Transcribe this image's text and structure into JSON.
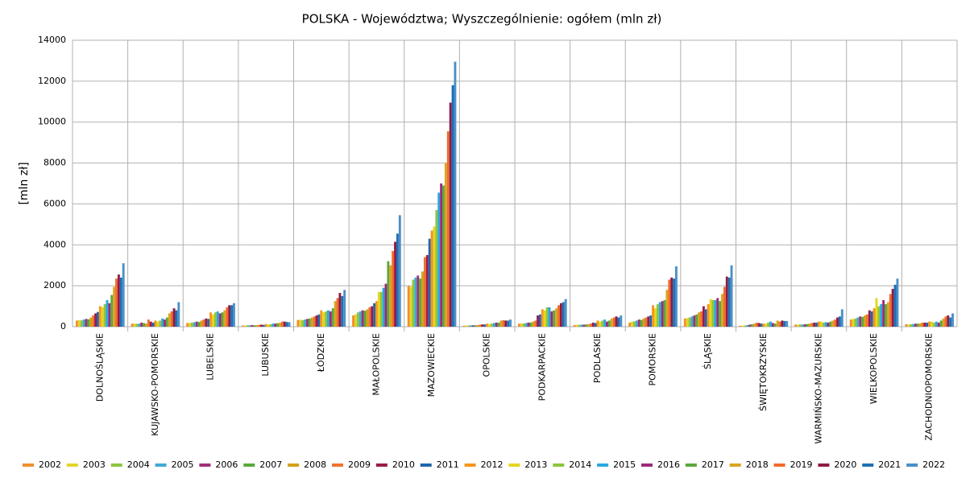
{
  "chart_data": {
    "type": "bar",
    "title": "POLSKA - Województwa; Wyszczególnienie: ogółem (mln zł)",
    "y_label": "[mln zł]",
    "categories": [
      "DOLNOŚLĄSKIE",
      "KUJAWSKO-POMORSKIE",
      "LUBELSKIE",
      "LUBUSKIE",
      "ŁÓDZKIE",
      "MAŁOPOLSKIE",
      "MAZOWIECKIE",
      "OPOLSKIE",
      "PODKARPACKIE",
      "PODLASKIE",
      "POMORSKIE",
      "ŚLĄSKIE",
      "ŚWIĘTOKRZYSKIE",
      "WARMIŃSKO-MAZURSKIE",
      "WIELKOPOLSKIE",
      "ZACHODNIOPOMORSKIE"
    ],
    "ylim": [
      0,
      14000
    ],
    "yticks": [
      0,
      2000,
      4000,
      6000,
      8000,
      10000,
      12000,
      14000
    ],
    "grid": true,
    "legend": "bottom",
    "series": [
      {
        "name": "2002",
        "color": "#f28e2b",
        "values": [
          300,
          150,
          180,
          60,
          330,
          550,
          2000,
          50,
          150,
          80,
          200,
          400,
          50,
          100,
          350,
          120
        ]
      },
      {
        "name": "2003",
        "color": "#e2d52a",
        "values": [
          320,
          150,
          190,
          60,
          340,
          600,
          1950,
          60,
          160,
          90,
          250,
          420,
          50,
          100,
          380,
          110
        ]
      },
      {
        "name": "2004",
        "color": "#8dc63f",
        "values": [
          310,
          140,
          200,
          70,
          320,
          700,
          2300,
          60,
          160,
          90,
          260,
          450,
          60,
          110,
          400,
          120
        ]
      },
      {
        "name": "2005",
        "color": "#3fa9d4",
        "values": [
          350,
          150,
          220,
          70,
          350,
          750,
          2400,
          70,
          180,
          100,
          300,
          500,
          80,
          110,
          450,
          130
        ]
      },
      {
        "name": "2006",
        "color": "#a0307a",
        "values": [
          380,
          200,
          250,
          80,
          380,
          800,
          2500,
          70,
          200,
          100,
          350,
          550,
          100,
          120,
          500,
          150
        ]
      },
      {
        "name": "2007",
        "color": "#5aa83a",
        "values": [
          360,
          180,
          230,
          70,
          400,
          780,
          2350,
          70,
          200,
          110,
          330,
          600,
          120,
          130,
          480,
          150
        ]
      },
      {
        "name": "2008",
        "color": "#d4a017",
        "values": [
          450,
          150,
          300,
          80,
          450,
          850,
          2700,
          80,
          250,
          120,
          400,
          700,
          150,
          150,
          550,
          160
        ]
      },
      {
        "name": "2009",
        "color": "#f0722e",
        "values": [
          550,
          350,
          350,
          90,
          500,
          950,
          3400,
          100,
          300,
          150,
          450,
          750,
          200,
          180,
          600,
          200
        ]
      },
      {
        "name": "2010",
        "color": "#9b1b4a",
        "values": [
          650,
          250,
          400,
          100,
          550,
          1000,
          3500,
          110,
          550,
          200,
          500,
          1000,
          180,
          200,
          800,
          200
        ]
      },
      {
        "name": "2011",
        "color": "#2166ac",
        "values": [
          720,
          200,
          380,
          90,
          600,
          1150,
          4300,
          110,
          600,
          180,
          550,
          850,
          150,
          200,
          750,
          200
        ]
      },
      {
        "name": "2012",
        "color": "#f7941d",
        "values": [
          1000,
          300,
          700,
          130,
          800,
          1250,
          4700,
          150,
          850,
          300,
          1050,
          1100,
          150,
          250,
          900,
          250
        ]
      },
      {
        "name": "2013",
        "color": "#e8d51e",
        "values": [
          950,
          250,
          600,
          110,
          700,
          1700,
          4900,
          130,
          800,
          250,
          900,
          1350,
          150,
          250,
          1400,
          250
        ]
      },
      {
        "name": "2014",
        "color": "#8cc63e",
        "values": [
          1100,
          300,
          700,
          120,
          750,
          1700,
          5700,
          150,
          950,
          300,
          1100,
          1300,
          200,
          200,
          1000,
          200
        ]
      },
      {
        "name": "2015",
        "color": "#2aa7df",
        "values": [
          1300,
          400,
          750,
          150,
          800,
          1900,
          6550,
          180,
          950,
          350,
          1200,
          1300,
          250,
          220,
          1100,
          250
        ]
      },
      {
        "name": "2016",
        "color": "#9d2a7a",
        "values": [
          1150,
          350,
          650,
          150,
          750,
          2100,
          7000,
          200,
          750,
          250,
          1250,
          1400,
          180,
          200,
          1300,
          200
        ]
      },
      {
        "name": "2017",
        "color": "#5aa83c",
        "values": [
          1550,
          450,
          700,
          170,
          900,
          3200,
          6900,
          200,
          800,
          300,
          1300,
          1250,
          150,
          250,
          1100,
          300
        ]
      },
      {
        "name": "2018",
        "color": "#d9a521",
        "values": [
          1950,
          650,
          800,
          200,
          1250,
          3000,
          8000,
          300,
          900,
          400,
          1800,
          1600,
          300,
          300,
          1200,
          400
        ]
      },
      {
        "name": "2019",
        "color": "#f26b2a",
        "values": [
          2350,
          750,
          950,
          250,
          1400,
          3700,
          9550,
          320,
          1050,
          450,
          2300,
          1950,
          250,
          350,
          1600,
          500
        ]
      },
      {
        "name": "2020",
        "color": "#8e1c45",
        "values": [
          2550,
          900,
          1050,
          250,
          1650,
          4150,
          10950,
          300,
          1150,
          500,
          2400,
          2450,
          300,
          450,
          1850,
          550
        ]
      },
      {
        "name": "2021",
        "color": "#1f6fb5",
        "values": [
          2400,
          800,
          1050,
          230,
          1500,
          4550,
          11800,
          300,
          1200,
          450,
          2350,
          2400,
          280,
          500,
          2050,
          450
        ]
      },
      {
        "name": "2022",
        "color": "#4a90c8",
        "values": [
          3100,
          1200,
          1150,
          220,
          1800,
          5450,
          12950,
          350,
          1350,
          550,
          2950,
          3000,
          280,
          850,
          2350,
          650
        ]
      }
    ]
  }
}
